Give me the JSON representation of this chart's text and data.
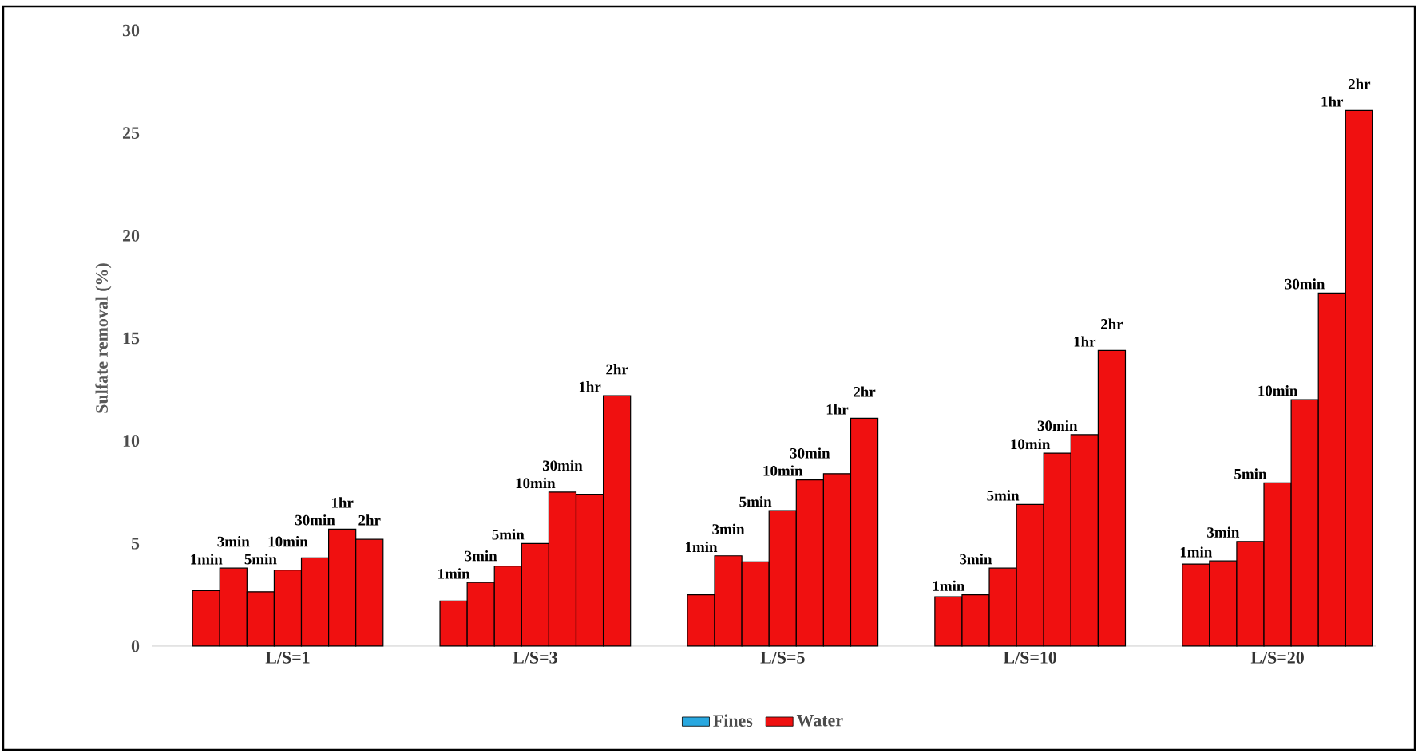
{
  "chart_data": {
    "type": "bar",
    "ylabel": "Sulfate removal (%)",
    "categories": [
      "L/S=1",
      "L/S=3",
      "L/S=5",
      "L/S=10",
      "L/S=20"
    ],
    "ylim": [
      0,
      30
    ],
    "yticks": [
      0,
      5,
      10,
      15,
      20,
      25,
      30
    ],
    "legend": "bottom",
    "series": [
      {
        "name": "Fines",
        "color": "#29a8e0",
        "values": [
          null,
          null,
          null,
          null,
          null
        ]
      },
      {
        "name": "Water",
        "color": "#f01010",
        "values": [
          2.7,
          2.2,
          2.5,
          2.4,
          4.0
        ]
      },
      {
        "color": "#f01010",
        "values": [
          3.8,
          3.1,
          4.4,
          2.5,
          4.15
        ]
      },
      {
        "color": "#f01010",
        "values": [
          2.65,
          3.9,
          4.1,
          3.8,
          5.1
        ]
      },
      {
        "color": "#f01010",
        "values": [
          3.7,
          5.0,
          6.6,
          6.9,
          7.95
        ]
      },
      {
        "color": "#f01010",
        "values": [
          4.3,
          7.5,
          8.1,
          9.4,
          12.0
        ]
      },
      {
        "color": "#f01010",
        "values": [
          5.7,
          7.4,
          8.4,
          10.3,
          17.2
        ]
      },
      {
        "color": "#f01010",
        "values": [
          5.2,
          12.2,
          11.1,
          14.4,
          26.1
        ]
      }
    ],
    "annotations": [
      "1min",
      "1min",
      "1min",
      "1min",
      "1min",
      "3min",
      "3min",
      "3min",
      "3min",
      "3min",
      "5min",
      "5min",
      "5min",
      "5min",
      "5min",
      "10min",
      "10min",
      "10min",
      "10min",
      "10min",
      "30min",
      "30min",
      "30min",
      "30min",
      "30min",
      "1hr",
      "1hr",
      "1hr",
      "1hr",
      "1hr",
      "2hr",
      "2hr",
      "2hr",
      "2hr",
      "2hr"
    ]
  }
}
